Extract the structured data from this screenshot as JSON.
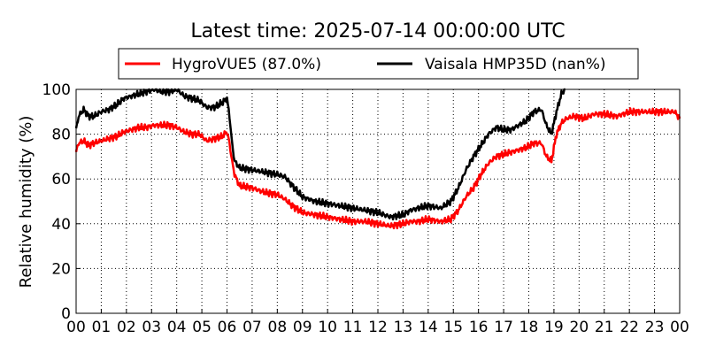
{
  "chart_data": {
    "type": "line",
    "title": "Latest time: 2025-07-14 00:00:00 UTC",
    "xlabel": "",
    "ylabel": "Relative humidity (%)",
    "xlim": [
      0,
      24
    ],
    "ylim": [
      0,
      100
    ],
    "grid": true,
    "legend_position": "top",
    "x_tick_labels": [
      "00",
      "01",
      "02",
      "03",
      "04",
      "05",
      "06",
      "07",
      "08",
      "09",
      "10",
      "11",
      "12",
      "13",
      "14",
      "15",
      "16",
      "17",
      "18",
      "19",
      "20",
      "21",
      "22",
      "23",
      "00"
    ],
    "y_tick_labels": [
      "0",
      "20",
      "40",
      "60",
      "80",
      "100"
    ],
    "series": [
      {
        "name": "HygroVUE5 (87.0%)",
        "color": "#ff0000",
        "x": [
          0,
          0.1,
          0.3,
          0.5,
          0.7,
          1.0,
          1.3,
          1.6,
          1.9,
          2.2,
          2.5,
          2.8,
          3.1,
          3.4,
          3.7,
          4.0,
          4.3,
          4.6,
          4.9,
          5.2,
          5.5,
          5.8,
          6.0,
          6.1,
          6.2,
          6.3,
          6.5,
          7.0,
          7.5,
          8.0,
          8.3,
          8.6,
          9.0,
          9.5,
          10.0,
          10.5,
          11.0,
          11.5,
          12.0,
          12.5,
          13.0,
          13.3,
          13.6,
          14.0,
          14.5,
          14.9,
          15.2,
          15.5,
          15.8,
          16.1,
          16.4,
          16.7,
          17.0,
          17.3,
          17.6,
          17.9,
          18.2,
          18.5,
          18.7,
          18.9,
          19.1,
          19.3,
          19.5,
          19.8,
          20.2,
          20.6,
          21.0,
          21.5,
          22.0,
          22.5,
          23.0,
          23.5,
          23.8,
          24.0
        ],
        "values": [
          72,
          76,
          77,
          75,
          76,
          77,
          78,
          79,
          81,
          82,
          83,
          83,
          84,
          84,
          84,
          83,
          81,
          80,
          80,
          77,
          78,
          79,
          81,
          76,
          68,
          62,
          57,
          56,
          54,
          53,
          51,
          48,
          45,
          44,
          43,
          42,
          41,
          41,
          40,
          39,
          40,
          41,
          41,
          42,
          41,
          42,
          46,
          52,
          56,
          62,
          67,
          70,
          71,
          72,
          73,
          74,
          76,
          76,
          70,
          68,
          80,
          85,
          87,
          88,
          87,
          89,
          89,
          88,
          90,
          90,
          90,
          90,
          90,
          87
        ]
      },
      {
        "name": "Vaisala HMP35D (nan%)",
        "color": "#000000",
        "x": [
          0,
          0.1,
          0.3,
          0.5,
          0.7,
          1.0,
          1.3,
          1.6,
          1.9,
          2.2,
          2.5,
          2.8,
          3.1,
          3.4,
          3.7,
          4.0,
          4.3,
          4.6,
          4.9,
          5.2,
          5.5,
          5.8,
          6.0,
          6.1,
          6.2,
          6.3,
          6.5,
          7.0,
          7.5,
          8.0,
          8.3,
          8.6,
          9.0,
          9.5,
          10.0,
          10.5,
          11.0,
          11.5,
          12.0,
          12.5,
          13.0,
          13.3,
          13.6,
          14.0,
          14.5,
          14.9,
          15.2,
          15.5,
          15.8,
          16.1,
          16.4,
          16.7,
          17.0,
          17.3,
          17.6,
          17.9,
          18.2,
          18.5,
          18.7,
          18.9,
          19.1,
          19.3,
          19.45
        ],
        "values": [
          82,
          88,
          91,
          88,
          88,
          90,
          91,
          93,
          96,
          97,
          98,
          99,
          100,
          99,
          99,
          100,
          97,
          96,
          95,
          92,
          92,
          94,
          96,
          88,
          76,
          68,
          65,
          64,
          63,
          62,
          61,
          57,
          52,
          50,
          49,
          48,
          47,
          46,
          45,
          43,
          44,
          46,
          47,
          48,
          47,
          50,
          56,
          64,
          70,
          75,
          80,
          83,
          82,
          82,
          84,
          86,
          90,
          91,
          84,
          80,
          90,
          98,
          100
        ]
      }
    ]
  }
}
